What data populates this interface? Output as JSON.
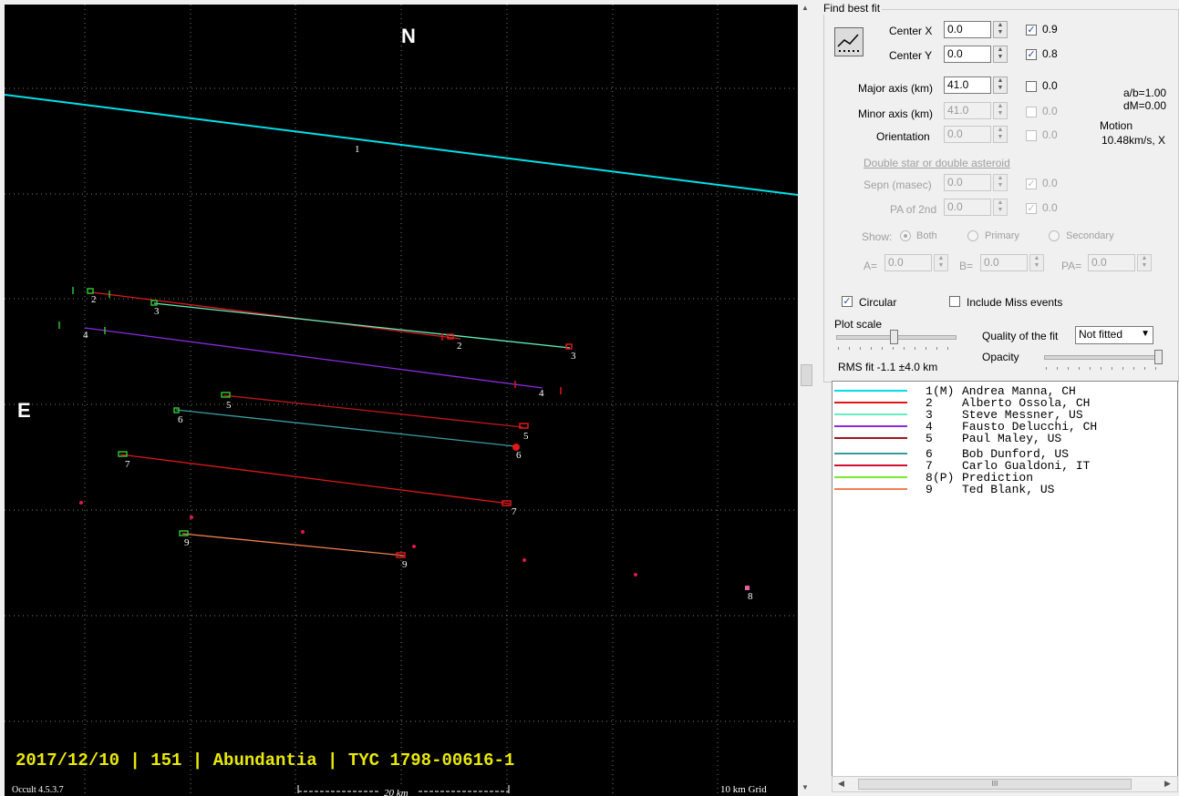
{
  "plot": {
    "north_label": "N",
    "east_label": "E",
    "title_banner": "2017/12/10 | 151 | Abundantia | TYC 1798-00616-1",
    "version": "Occult 4.5.3.7",
    "scale_bar": "20 km",
    "grid_label": "10 km Grid",
    "colors": {
      "background": "#000000",
      "banner": "#e8e800",
      "grid": "#7a7a7a"
    },
    "chord_labels": [
      "1",
      "2",
      "2",
      "3",
      "3",
      "4",
      "4",
      "5",
      "5",
      "6",
      "6",
      "7",
      "7",
      "9",
      "9",
      "8"
    ]
  },
  "fit_panel": {
    "group_title": "Find best fit",
    "fit_button_icon": "scatter-fit-icon",
    "center_x_label": "Center X",
    "center_x_value": "0.0",
    "center_x_check": "0.9",
    "center_y_label": "Center Y",
    "center_y_value": "0.0",
    "center_y_check": "0.8",
    "major_axis_label": "Major axis (km)",
    "major_axis_value": "41.0",
    "major_axis_check": "0.0",
    "minor_axis_label": "Minor axis (km)",
    "minor_axis_value": "41.0",
    "minor_axis_check": "0.0",
    "orientation_label": "Orientation",
    "orientation_value": "0.0",
    "orientation_check": "0.0",
    "ab_ratio": "a/b=1.00",
    "dm": "dM=0.00",
    "motion_label": "Motion",
    "motion_value": "10.48km/s, X",
    "double_header": "Double star  or  double asteroid",
    "sepn_label": "Sepn (masec)",
    "sepn_value": "0.0",
    "sepn_check": "0.0",
    "pa2_label": "PA of 2nd",
    "pa2_value": "0.0",
    "pa2_check": "0.0",
    "show_label": "Show:",
    "show_both": "Both",
    "show_primary": "Primary",
    "show_secondary": "Secondary",
    "a_label": "A=",
    "a_value": "0.0",
    "b_label": "B=",
    "b_value": "0.0",
    "pa_label": "PA=",
    "pa_value": "0.0",
    "circular_label": "Circular",
    "include_miss_label": "Include Miss events",
    "plot_scale_label": "Plot scale",
    "quality_label": "Quality of the fit",
    "quality_value": "Not fitted",
    "opacity_label": "Opacity",
    "rms_label": "RMS fit -1.1 ±4.0 km"
  },
  "legend": [
    {
      "num": "1",
      "flag": "(M)",
      "name": "Andrea Manna, CH",
      "color": "#00e0e8"
    },
    {
      "num": "2",
      "flag": "",
      "name": "Alberto Ossola, CH",
      "color": "#e01818"
    },
    {
      "num": "3",
      "flag": "",
      "name": "Steve Messner, US",
      "color": "#60f0c0"
    },
    {
      "num": "4",
      "flag": "",
      "name": "Fausto Delucchi, CH",
      "color": "#8a2be2"
    },
    {
      "num": "5",
      "flag": "",
      "name": "Paul Maley, US",
      "color": "#a01818"
    },
    {
      "num": "6",
      "flag": "",
      "name": "Bob Dunford, US",
      "color": "#3a9aa0"
    },
    {
      "num": "7",
      "flag": "",
      "name": "Carlo Gualdoni, IT",
      "color": "#d01030"
    },
    {
      "num": "8",
      "flag": "(P)",
      "name": "Prediction",
      "color": "#7ce830"
    },
    {
      "num": "9",
      "flag": "",
      "name": "Ted Blank, US",
      "color": "#f08050"
    }
  ]
}
